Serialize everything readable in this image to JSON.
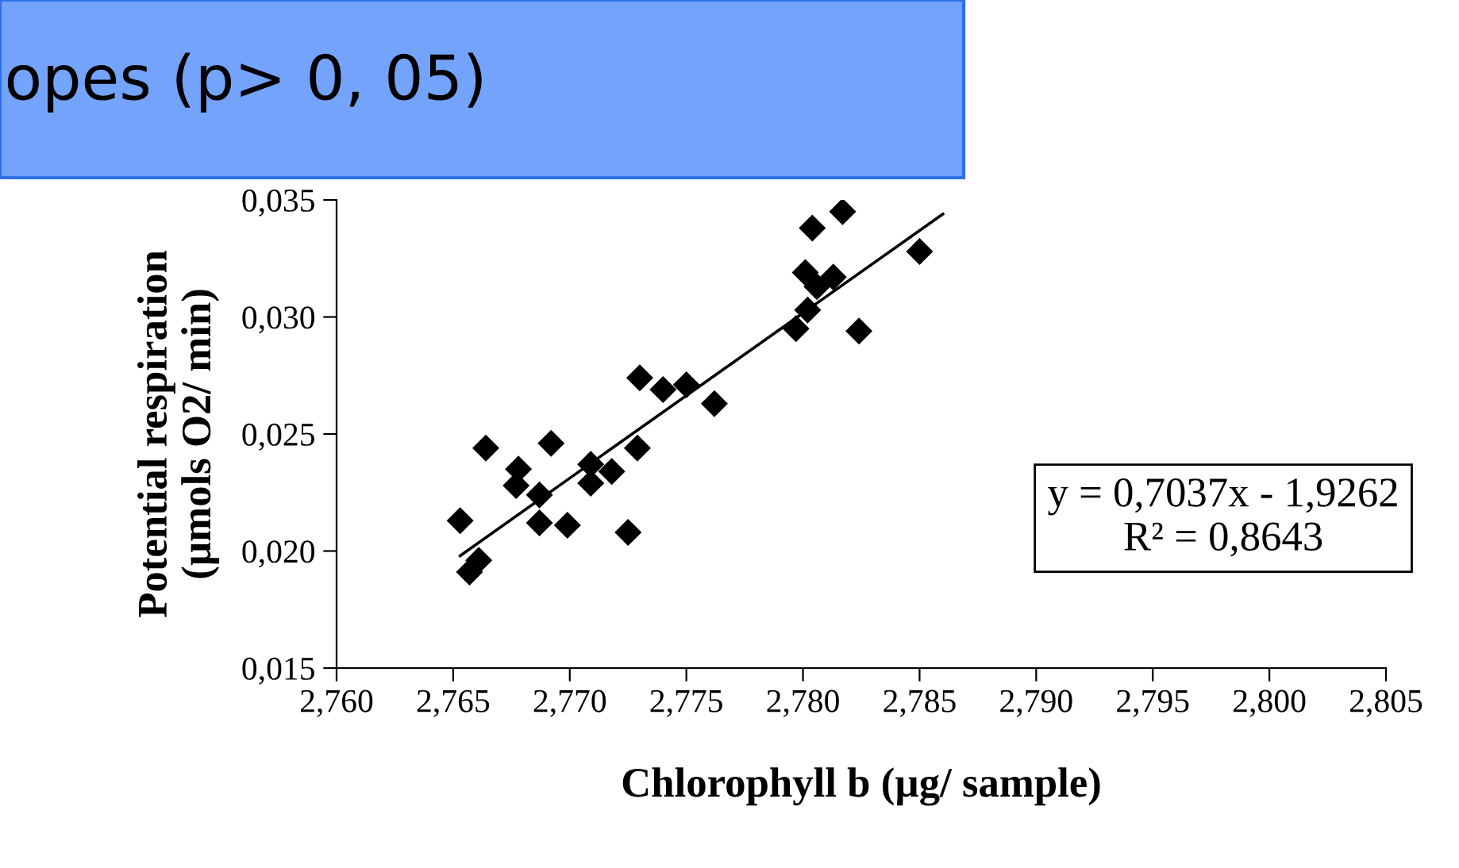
{
  "chart_data": {
    "type": "scatter",
    "xlabel": "Chlorophyll b (µg/ sample)",
    "ylabel": "Potential respiration\n(µmols O2/ min)",
    "annotations": [
      "opes (p> 0, 05)",
      "y = 0,7037x - 1,9262\nR² = 0,8643"
    ],
    "series": [
      {
        "marker": "diamond",
        "color": "#000000",
        "x": [
          2.7653,
          2.7657,
          2.7661,
          2.7664,
          2.7678,
          2.7677,
          2.7687,
          2.7687,
          2.7692,
          2.7699,
          2.7709,
          2.7709,
          2.7718,
          2.7729,
          2.7725,
          2.773,
          2.774,
          2.775,
          2.7762,
          2.7797,
          2.7802,
          2.7801,
          2.7813,
          2.7806,
          2.7804,
          2.7817,
          2.7824,
          2.785
        ],
        "values": [
          0.0213,
          0.0191,
          0.0196,
          0.0244,
          0.0235,
          0.0228,
          0.0224,
          0.0212,
          0.0246,
          0.0211,
          0.0237,
          0.0229,
          0.0234,
          0.0244,
          0.0208,
          0.0274,
          0.0269,
          0.0271,
          0.0263,
          0.0295,
          0.0303,
          0.0319,
          0.0317,
          0.0313,
          0.0338,
          0.0345,
          0.0294,
          0.0328
        ]
      },
      {
        "type": "line",
        "color": "#000000",
        "x": [
          2.7653,
          2.786
        ],
        "values": [
          0.0198,
          0.0344
        ]
      }
    ],
    "xlim": [
      2.76,
      2.805
    ],
    "xticks": [
      {
        "value": 2.76,
        "label": "2,760"
      },
      {
        "value": 2.765,
        "label": "2,765"
      },
      {
        "value": 2.77,
        "label": "2,770"
      },
      {
        "value": 2.775,
        "label": "2,775"
      },
      {
        "value": 2.78,
        "label": "2,780"
      },
      {
        "value": 2.785,
        "label": "2,785"
      },
      {
        "value": 2.79,
        "label": "2,790"
      },
      {
        "value": 2.795,
        "label": "2,795"
      },
      {
        "value": 2.8,
        "label": "2,800"
      },
      {
        "value": 2.805,
        "label": "2,805"
      }
    ],
    "ylim": [
      0.015,
      0.035
    ],
    "yticks": [
      {
        "value": 0.015,
        "label": "0,015"
      },
      {
        "value": 0.02,
        "label": "0,020"
      },
      {
        "value": 0.025,
        "label": "0,025"
      },
      {
        "value": 0.03,
        "label": "0,030"
      },
      {
        "value": 0.035,
        "label": "0,035"
      }
    ],
    "grid": false,
    "legend": false
  }
}
